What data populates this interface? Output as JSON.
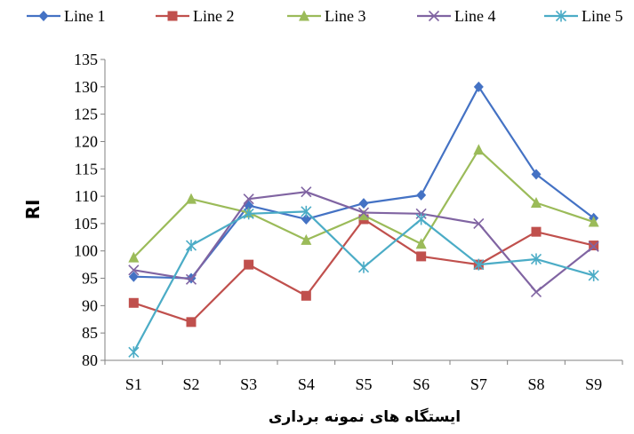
{
  "chart_data": {
    "type": "line",
    "title": "",
    "xlabel": "ایستگاه های نمونه برداری",
    "ylabel": "RI",
    "categories": [
      "S1",
      "S2",
      "S3",
      "S4",
      "S5",
      "S6",
      "S7",
      "S8",
      "S9"
    ],
    "ylim": [
      80,
      135
    ],
    "yticks": [
      80,
      85,
      90,
      95,
      100,
      105,
      110,
      115,
      120,
      125,
      130,
      135
    ],
    "grid": false,
    "legend_position": "top",
    "series": [
      {
        "name": "Line 1",
        "color": "#4472C4",
        "marker": "diamond",
        "values": [
          95.3,
          95.0,
          108.3,
          105.8,
          108.7,
          110.2,
          130.0,
          114.0,
          106.0
        ]
      },
      {
        "name": "Line 2",
        "color": "#C0504D",
        "marker": "square",
        "values": [
          90.5,
          87.0,
          97.5,
          91.8,
          105.8,
          99.0,
          97.5,
          103.5,
          101.0
        ]
      },
      {
        "name": "Line 3",
        "color": "#9BBB59",
        "marker": "triangle",
        "values": [
          98.8,
          109.5,
          107.0,
          102.0,
          106.5,
          101.3,
          118.5,
          108.8,
          105.3
        ]
      },
      {
        "name": "Line 4",
        "color": "#8064A2",
        "marker": "x",
        "values": [
          96.5,
          94.8,
          109.5,
          110.8,
          107.0,
          106.8,
          105.0,
          92.5,
          100.8
        ]
      },
      {
        "name": "Line 5",
        "color": "#4BACC6",
        "marker": "asterisk",
        "values": [
          81.5,
          101.0,
          106.8,
          107.2,
          97.0,
          105.8,
          97.5,
          98.5,
          95.5
        ]
      }
    ]
  }
}
